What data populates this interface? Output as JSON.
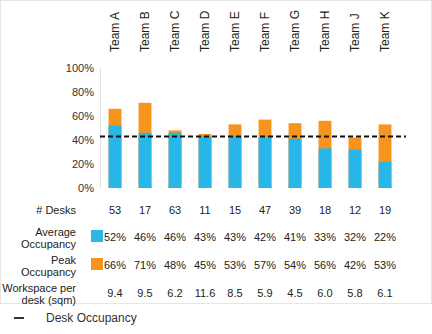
{
  "chart_data": {
    "type": "bar",
    "categories": [
      "Team A",
      "Team B",
      "Team C",
      "Team D",
      "Team E",
      "Team F",
      "Team G",
      "Team H",
      "Team J",
      "Team K"
    ],
    "series": [
      {
        "name": "Average Occupancy",
        "color": "#29b6e8",
        "values": [
          52,
          46,
          46,
          43,
          43,
          42,
          41,
          33,
          32,
          22
        ],
        "value_labels": [
          "52%",
          "46%",
          "46%",
          "43%",
          "43%",
          "42%",
          "41%",
          "33%",
          "32%",
          "22%"
        ]
      },
      {
        "name": "Peak Occupancy",
        "color": "#f7941d",
        "values": [
          66,
          71,
          48,
          45,
          53,
          57,
          54,
          56,
          42,
          53
        ],
        "value_labels": [
          "66%",
          "71%",
          "48%",
          "45%",
          "53%",
          "57%",
          "54%",
          "56%",
          "42%",
          "53%"
        ]
      }
    ],
    "stacked": false,
    "ylim": [
      0,
      100
    ],
    "yticks": [
      {
        "value": 0,
        "label": "0%"
      },
      {
        "value": 20,
        "label": "20%"
      },
      {
        "value": 40,
        "label": "40%"
      },
      {
        "value": 60,
        "label": "60%"
      },
      {
        "value": 80,
        "label": "80%"
      },
      {
        "value": 100,
        "label": "100%"
      }
    ],
    "desks": {
      "label": "# Desks",
      "values": [
        53,
        17,
        63,
        11,
        15,
        47,
        39,
        18,
        12,
        19
      ]
    },
    "workspace": {
      "label": "Workspace per desk (sqm)",
      "values": [
        9.4,
        9.5,
        6.2,
        11.6,
        8.5,
        5.9,
        4.5,
        6.0,
        5.8,
        6.1
      ],
      "value_labels": [
        "9.4",
        "9.5",
        "6.2",
        "11.6",
        "8.5",
        "5.9",
        "4.5",
        "6.0",
        "5.8",
        "6.1"
      ]
    },
    "reference_line": {
      "name": "Desk Occupancy",
      "value": 43,
      "line_style": "dashed"
    }
  }
}
